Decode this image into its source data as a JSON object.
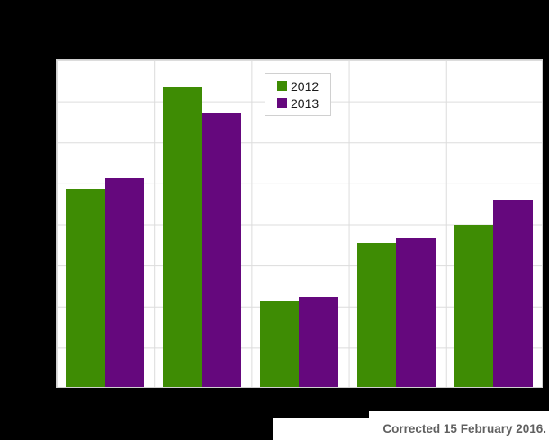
{
  "legend": {
    "items": [
      {
        "label": "2012",
        "color": "#3e8c04"
      },
      {
        "label": "2013",
        "color": "#65087d"
      }
    ]
  },
  "footer": {
    "note": "Corrected 15 February 2016."
  },
  "colors": {
    "series_2012": "#3e8c04",
    "series_2013": "#65087d",
    "gridline": "#dcdcdc",
    "plot_border": "#cfcfcf",
    "redaction": "#000000",
    "note_text": "#606060"
  },
  "chart_data": {
    "type": "bar",
    "title": "",
    "xlabel": "",
    "ylabel": "",
    "categories": [
      "",
      "",
      "",
      "",
      ""
    ],
    "axis_labels_hidden": true,
    "series": [
      {
        "name": "2012",
        "color": "#3e8c04",
        "values": [
          4.85,
          7.33,
          2.12,
          3.53,
          3.97
        ]
      },
      {
        "name": "2013",
        "color": "#65087d",
        "values": [
          5.11,
          6.7,
          2.2,
          3.64,
          4.59
        ]
      }
    ],
    "ylim": [
      0,
      8
    ],
    "grid": "horizontal lines every 1 unit; vertical separators between the 5 category groups",
    "legend_position": "top-center-inside",
    "units_note": "tick labels are covered by black redaction bars; values estimated in gridline units (1 unit = one horizontal gridline interval)"
  }
}
